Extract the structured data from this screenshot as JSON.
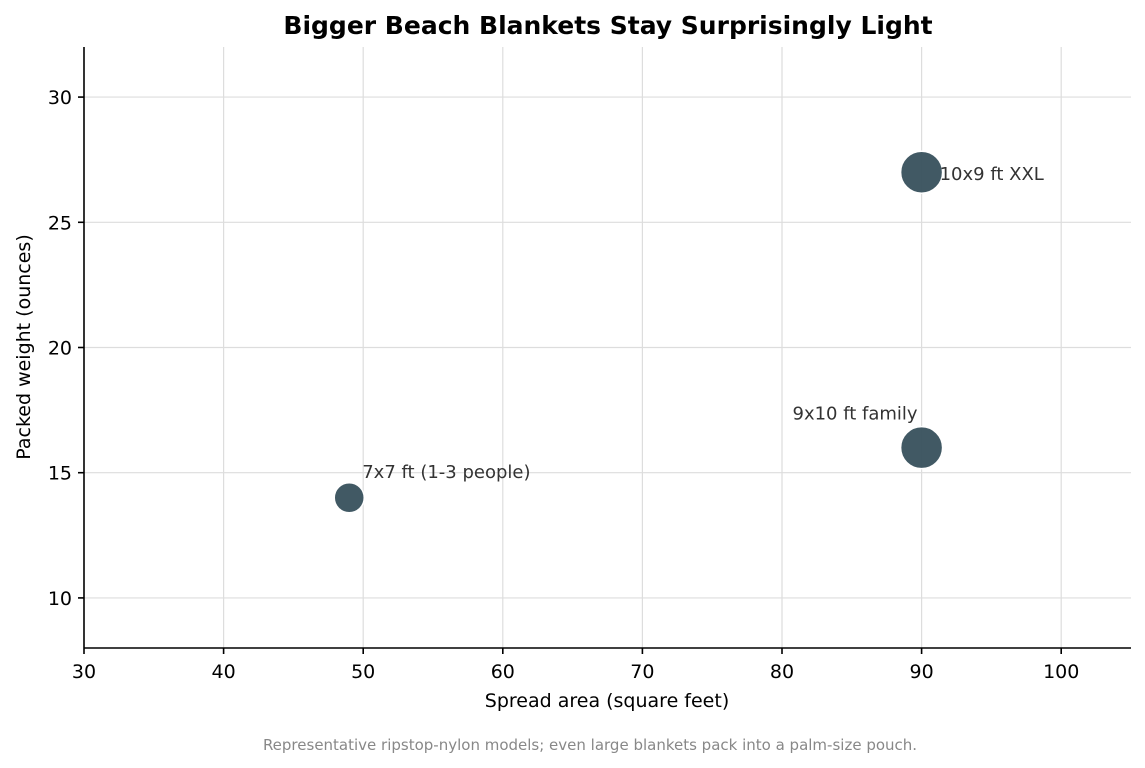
{
  "chart_data": {
    "type": "scatter",
    "title": "Bigger Beach Blankets Stay Surprisingly Light",
    "xlabel": "Spread area (square feet)",
    "ylabel": "Packed weight (ounces)",
    "caption": "Representative ripstop-nylon models; even large blankets pack into a palm-size pouch.",
    "xlim": [
      30,
      105
    ],
    "ylim": [
      8,
      32
    ],
    "xticks": [
      30,
      40,
      50,
      60,
      70,
      80,
      90,
      100
    ],
    "yticks": [
      10,
      15,
      20,
      25,
      30
    ],
    "grid": true,
    "point_color": "#37505c",
    "points": [
      {
        "label": "7x7 ft (1-3 people)",
        "x": 49,
        "y": 14,
        "size": "small"
      },
      {
        "label": "9x10 ft family",
        "x": 90,
        "y": 16,
        "size": "large"
      },
      {
        "label": "10x9 ft XXL",
        "x": 90,
        "y": 27,
        "size": "large"
      }
    ]
  }
}
